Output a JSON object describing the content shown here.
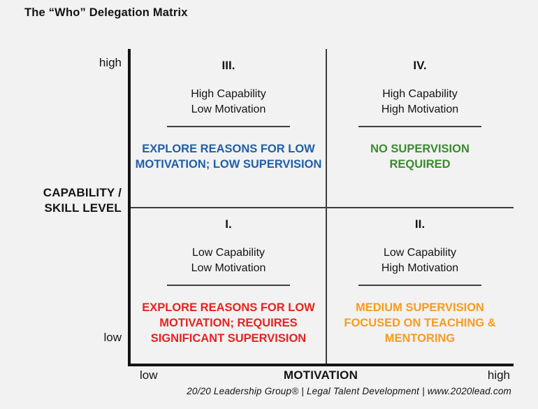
{
  "title": "The “Who” Delegation Matrix",
  "colors": {
    "background": "#f2f2f2",
    "text": "#141414",
    "axis_line": "#141414",
    "divider_line": "#3d3d3d",
    "quadrant_blue": "#1F5FA8",
    "quadrant_green": "#3A8A2F",
    "quadrant_red": "#E52320",
    "quadrant_orange": "#F79B1E"
  },
  "y_axis": {
    "title_line1": "CAPABILITY /",
    "title_line2": "SKILL LEVEL",
    "high": "high",
    "low": "low"
  },
  "x_axis": {
    "label": "MOTIVATION",
    "low": "low",
    "high": "high"
  },
  "quadrants": [
    {
      "id": "III",
      "position": "top-left",
      "numeral": "III.",
      "line1": "High Capability",
      "line2": "Low Motivation",
      "action": "EXPLORE REASONS FOR LOW MOTIVATION; LOW SUPERVISION",
      "action_color": "#1F5FA8"
    },
    {
      "id": "IV",
      "position": "top-right",
      "numeral": "IV.",
      "line1": "High Capability",
      "line2": "High Motivation",
      "action": "NO SUPERVISION REQUIRED",
      "action_color": "#3A8A2F"
    },
    {
      "id": "I",
      "position": "bottom-left",
      "numeral": "I.",
      "line1": "Low Capability",
      "line2": "Low Motivation",
      "action": "EXPLORE REASONS FOR LOW MOTIVATION; REQUIRES SIGNIFICANT SUPERVISION",
      "action_color": "#E52320"
    },
    {
      "id": "II",
      "position": "bottom-right",
      "numeral": "II.",
      "line1": "Low Capability",
      "line2": "High Motivation",
      "action": "MEDIUM SUPERVISION FOCUSED ON TEACHING & MENTORING",
      "action_color": "#F79B1E"
    }
  ],
  "footer": "20/20 Leadership Group® | Legal Talent Development | www.2020lead.com"
}
